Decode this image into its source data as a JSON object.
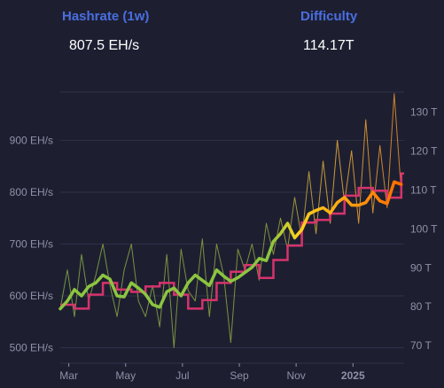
{
  "header": {
    "hashrate_label": "Hashrate (1w)",
    "hashrate_value": "807.5 EH/s",
    "difficulty_label": "Difficulty",
    "difficulty_value": "114.17T"
  },
  "colors": {
    "background": "#1d1f31",
    "label_blue": "#4a6ee0",
    "daily_green": "#7ea244",
    "daily_orange": "#e3a83a",
    "avg_green": "#8cc540",
    "avg_orange": "#ff8a00",
    "difficulty_line": "#d6336c",
    "grid": "#2e3046",
    "tick_text": "#8f90a6"
  },
  "chart_data": {
    "type": "line",
    "x_ticks": [
      "Mar",
      "May",
      "Jul",
      "Sep",
      "Nov",
      "2025"
    ],
    "y_left_ticks": [
      "500 EH/s",
      "600 EH/s",
      "700 EH/s",
      "800 EH/s",
      "900 EH/s"
    ],
    "y_right_ticks": [
      "70 T",
      "80 T",
      "90 T",
      "100 T",
      "110 T",
      "120 T",
      "130 T"
    ],
    "ylim_left": [
      470,
      1000
    ],
    "ylim_right": [
      65.5,
      136
    ],
    "x_range_months": [
      0,
      12.1
    ],
    "grid": true,
    "series": [
      {
        "name": "",
        "role": "hashrate_1w_average",
        "x": [
          0.0,
          0.25,
          0.5,
          0.75,
          1.0,
          1.25,
          1.5,
          1.75,
          2.0,
          2.25,
          2.5,
          2.75,
          3.0,
          3.25,
          3.5,
          3.75,
          4.0,
          4.25,
          4.5,
          4.75,
          5.0,
          5.25,
          5.5,
          5.75,
          6.0,
          6.25,
          6.5,
          6.75,
          7.0,
          7.25,
          7.5,
          7.75,
          8.0,
          8.25,
          8.5,
          8.75,
          9.0,
          9.25,
          9.5,
          9.75,
          10.0,
          10.25,
          10.5,
          10.75,
          11.0,
          11.25,
          11.5,
          11.75,
          12.0
        ],
        "y": [
          575,
          590,
          612,
          600,
          618,
          625,
          640,
          632,
          600,
          598,
          625,
          615,
          603,
          583,
          578,
          608,
          615,
          600,
          625,
          640,
          630,
          620,
          650,
          638,
          628,
          635,
          645,
          655,
          672,
          668,
          705,
          720,
          740,
          712,
          728,
          758,
          765,
          770,
          760,
          780,
          790,
          775,
          775,
          780,
          800,
          783,
          778,
          820,
          815
        ]
      },
      {
        "name": "",
        "role": "hashrate_daily",
        "x": [
          0.0,
          0.25,
          0.5,
          0.75,
          1.0,
          1.25,
          1.5,
          1.75,
          2.0,
          2.25,
          2.5,
          2.75,
          3.0,
          3.25,
          3.5,
          3.75,
          4.0,
          4.25,
          4.5,
          4.75,
          5.0,
          5.25,
          5.5,
          5.75,
          6.0,
          6.25,
          6.5,
          6.75,
          7.0,
          7.25,
          7.5,
          7.75,
          8.0,
          8.25,
          8.5,
          8.75,
          9.0,
          9.25,
          9.5,
          9.75,
          10.0,
          10.25,
          10.5,
          10.75,
          11.0,
          11.25,
          11.5,
          11.75,
          12.0
        ],
        "y": [
          575,
          650,
          560,
          680,
          590,
          640,
          700,
          620,
          560,
          650,
          700,
          590,
          560,
          620,
          540,
          680,
          500,
          690,
          610,
          590,
          710,
          560,
          700,
          640,
          510,
          690,
          650,
          700,
          630,
          740,
          680,
          750,
          690,
          790,
          710,
          840,
          720,
          860,
          740,
          900,
          780,
          880,
          740,
          940,
          760,
          890,
          770,
          990,
          800
        ]
      },
      {
        "name": "",
        "role": "difficulty",
        "x": [
          0.0,
          0.5,
          0.5,
          1.0,
          1.0,
          1.5,
          1.5,
          2.0,
          2.0,
          2.5,
          2.5,
          3.0,
          3.0,
          3.5,
          3.5,
          4.0,
          4.0,
          4.5,
          4.5,
          5.0,
          5.0,
          5.5,
          5.5,
          6.0,
          6.0,
          6.5,
          6.5,
          7.0,
          7.0,
          7.5,
          7.5,
          8.0,
          8.0,
          8.5,
          8.5,
          9.0,
          9.0,
          9.5,
          9.5,
          10.0,
          10.0,
          10.5,
          10.5,
          11.0,
          11.0,
          11.5,
          11.5,
          12.0,
          12.0,
          12.1
        ],
        "y": [
          80.5,
          80.5,
          79.5,
          79.5,
          83.1,
          83.1,
          86.1,
          86.1,
          84.4,
          84.4,
          83.8,
          83.8,
          85.2,
          85.2,
          86.1,
          86.1,
          83.1,
          83.1,
          79.5,
          79.5,
          81.7,
          81.7,
          86.1,
          86.1,
          89.0,
          89.0,
          90.7,
          90.7,
          87.4,
          87.4,
          92.0,
          92.0,
          95.7,
          95.7,
          101.6,
          101.6,
          102.3,
          102.3,
          103.9,
          103.9,
          108.5,
          108.5,
          110.5,
          110.5,
          109.8,
          109.8,
          108.0,
          108.0,
          114.2,
          114.2
        ]
      }
    ]
  }
}
